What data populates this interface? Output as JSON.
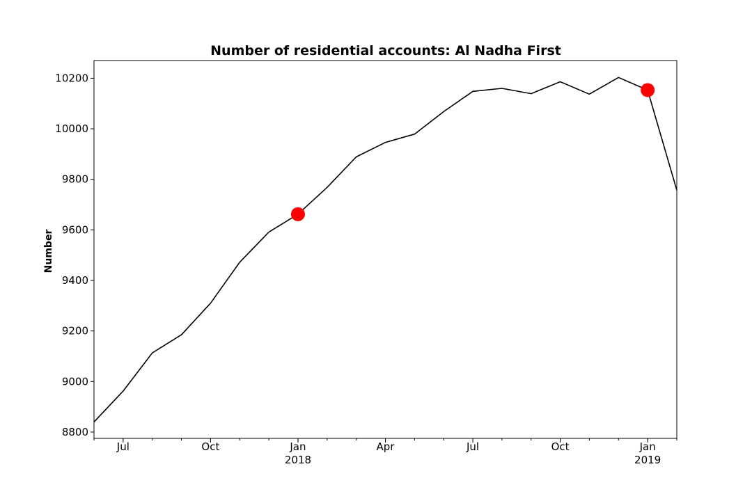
{
  "chart_data": {
    "type": "line",
    "title": "Number of residential accounts: Al Nadha First",
    "xlabel": "",
    "ylabel": "Number",
    "x": [
      "2017-06",
      "2017-07",
      "2017-08",
      "2017-09",
      "2017-10",
      "2017-11",
      "2017-12",
      "2018-01",
      "2018-02",
      "2018-03",
      "2018-04",
      "2018-05",
      "2018-06",
      "2018-07",
      "2018-08",
      "2018-09",
      "2018-10",
      "2018-11",
      "2018-12",
      "2019-01",
      "2019-02"
    ],
    "series": [
      {
        "name": "Number",
        "color": "#000000",
        "values": [
          8840,
          8962,
          9113,
          9185,
          9310,
          9472,
          9591,
          9662,
          9768,
          9889,
          9946,
          9979,
          10068,
          10148,
          10160,
          10139,
          10186,
          10137,
          10203,
          10153,
          9757
        ]
      }
    ],
    "highlights": [
      {
        "x": "2018-01",
        "value": 9662,
        "color": "#ff0000"
      },
      {
        "x": "2019-01",
        "value": 10153,
        "color": "#ff0000"
      }
    ],
    "ylim": [
      8775,
      10270
    ],
    "yticks": [
      8800,
      9000,
      9200,
      9400,
      9600,
      9800,
      10000,
      10200
    ],
    "xticks": [
      {
        "x": "2017-07",
        "label": "Jul",
        "sublabel": ""
      },
      {
        "x": "2017-10",
        "label": "Oct",
        "sublabel": ""
      },
      {
        "x": "2018-01",
        "label": "Jan",
        "sublabel": "2018"
      },
      {
        "x": "2018-04",
        "label": "Apr",
        "sublabel": ""
      },
      {
        "x": "2018-07",
        "label": "Jul",
        "sublabel": ""
      },
      {
        "x": "2018-10",
        "label": "Oct",
        "sublabel": ""
      },
      {
        "x": "2019-01",
        "label": "Jan",
        "sublabel": "2019"
      }
    ],
    "grid": false
  }
}
